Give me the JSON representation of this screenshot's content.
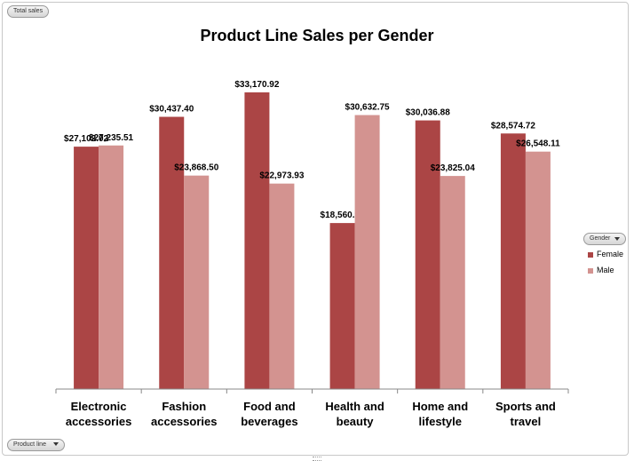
{
  "chart_data": {
    "type": "bar",
    "title": "Product Line Sales per Gender",
    "categories": [
      "Electronic accessories",
      "Fashion accessories",
      "Food and beverages",
      "Health and beauty",
      "Home and lifestyle",
      "Sports and travel"
    ],
    "category_lines": [
      [
        "Electronic",
        "accessories"
      ],
      [
        "Fashion",
        "accessories"
      ],
      [
        "Food and",
        "beverages"
      ],
      [
        "Health and",
        "beauty"
      ],
      [
        "Home and",
        "lifestyle"
      ],
      [
        "Sports and",
        "travel"
      ]
    ],
    "series": [
      {
        "name": "Female",
        "color": "#ab4545",
        "values": [
          27102.02,
          30437.4,
          33170.92,
          18560.99,
          30036.88,
          28574.72
        ],
        "labels": [
          "$27,102.02",
          "$30,437.40",
          "$33,170.92",
          "$18,560.99",
          "$30,036.88",
          "$28,574.72"
        ]
      },
      {
        "name": "Male",
        "color": "#d39390",
        "values": [
          27235.51,
          23868.5,
          22973.93,
          30632.75,
          23825.04,
          26548.11
        ],
        "labels": [
          "$27,235.51",
          "$23,868.50",
          "$22,973.93",
          "$30,632.75",
          "$23,825.04",
          "$26,548.11"
        ]
      }
    ],
    "ylim": [
      0,
      40000
    ],
    "grid": false,
    "legend_position": "right",
    "legend_title": "Gender"
  },
  "ui": {
    "total_sales_button": "Total sales",
    "product_line_button": "Product line",
    "gender_button": "Gender"
  }
}
